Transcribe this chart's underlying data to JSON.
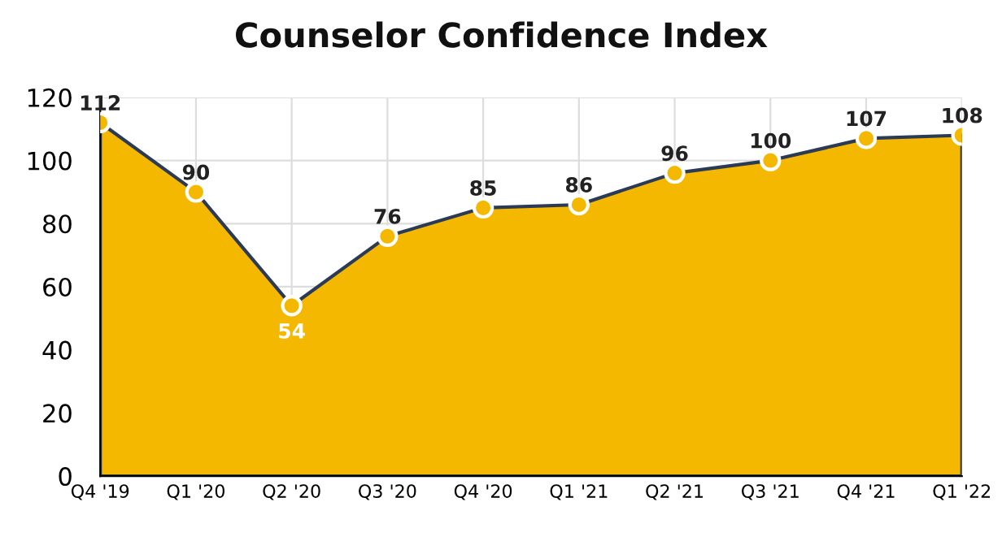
{
  "chart_data": {
    "type": "area",
    "title": "Counselor Confidence Index",
    "categories": [
      "Q4 '19",
      "Q1 '20",
      "Q2 '20",
      "Q3 '20",
      "Q4 '20",
      "Q1 '21",
      "Q2 '21",
      "Q3 '21",
      "Q4 '21",
      "Q1 '22"
    ],
    "series": [
      {
        "color": "#f5b800",
        "values": [
          112,
          90,
          54,
          76,
          85,
          86,
          96,
          100,
          107,
          108
        ]
      }
    ],
    "ylim": [
      0,
      120
    ],
    "yticks": [
      0,
      20,
      40,
      60,
      80,
      100,
      120
    ],
    "grid": true,
    "marker": "circle",
    "data_labels": true
  }
}
